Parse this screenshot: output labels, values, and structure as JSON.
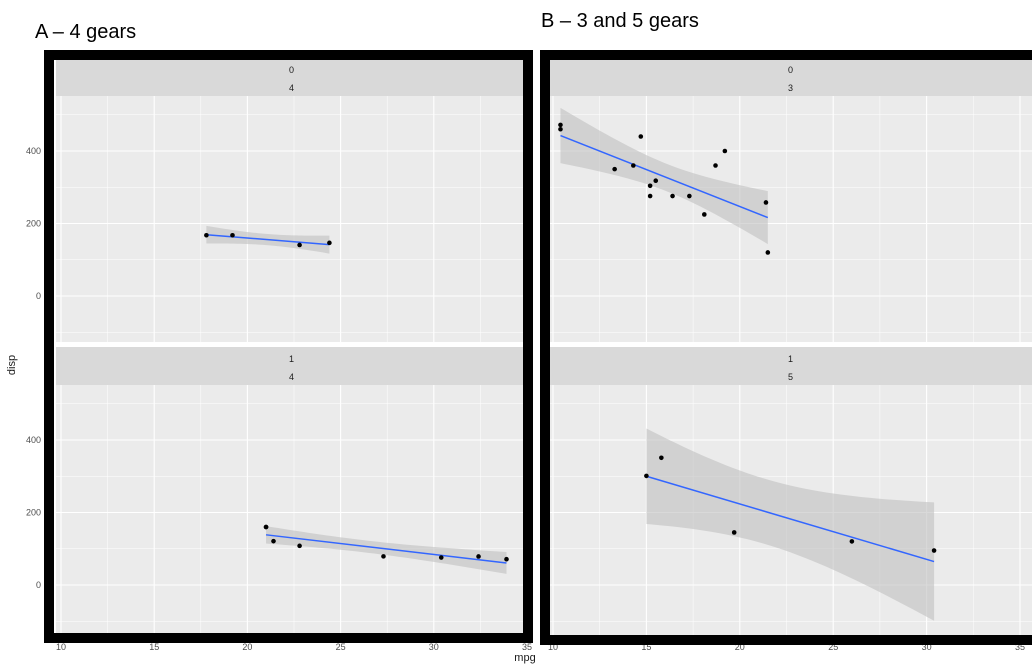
{
  "annotations": {
    "a": "A – 4 gears",
    "b": "B – 3 and 5 gears"
  },
  "chart_data": {
    "type": "scatter",
    "xlabel": "mpg",
    "ylabel": "disp",
    "xlim": [
      9,
      35.5
    ],
    "xticks": [
      10,
      15,
      20,
      25,
      30,
      35
    ],
    "yticks": [
      0,
      200,
      400
    ],
    "ylim": [
      -125,
      550
    ],
    "grid": true,
    "smoother": {
      "method": "lm",
      "color": "#3366FF",
      "ci_level": 0.95
    },
    "colors": {
      "panel": "#EBEBEB",
      "strip": "#D9D9D9",
      "point": "#000000",
      "band": "#BFBFBF",
      "frame": "#000000"
    },
    "panels": [
      {
        "group": "A",
        "strip": [
          "0",
          "4"
        ],
        "x": [
          24.4,
          22.8,
          19.2,
          17.8
        ],
        "y": [
          146.7,
          140.8,
          167.6,
          167.6
        ]
      },
      {
        "group": "B",
        "strip": [
          "0",
          "3"
        ],
        "x": [
          21.4,
          18.7,
          18.1,
          14.3,
          16.4,
          17.3,
          15.2,
          10.4,
          10.4,
          14.7,
          21.5,
          15.5,
          15.2,
          13.3,
          19.2
        ],
        "y": [
          258,
          360,
          225,
          360,
          275.8,
          275.8,
          275.8,
          472,
          460,
          440,
          120.1,
          318,
          304,
          350,
          400
        ]
      },
      {
        "group": "A",
        "strip": [
          "1",
          "4"
        ],
        "x": [
          21,
          21,
          22.8,
          32.4,
          30.4,
          33.9,
          27.3,
          21.4
        ],
        "y": [
          160,
          160,
          108,
          78.7,
          75.7,
          71.1,
          79,
          121
        ]
      },
      {
        "group": "B",
        "strip": [
          "1",
          "5"
        ],
        "x": [
          26,
          30.4,
          15.8,
          19.7,
          15
        ],
        "y": [
          120.3,
          95.1,
          351,
          145,
          301
        ]
      }
    ]
  }
}
